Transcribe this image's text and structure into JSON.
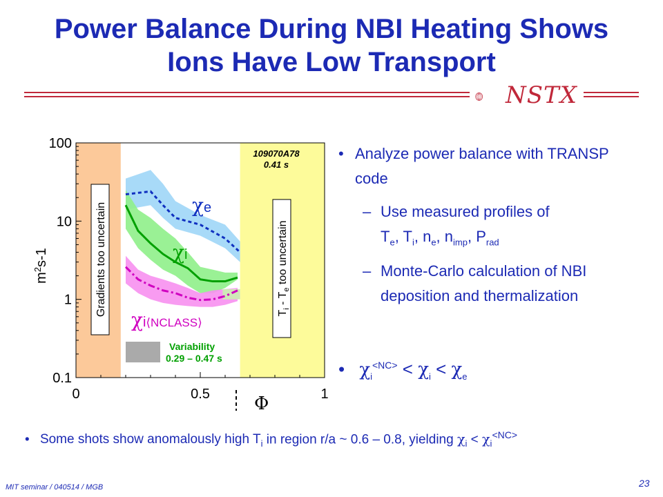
{
  "title_line1": "Power Balance During NBI Heating Shows",
  "title_line2": "Ions Have Low Transport",
  "logo_text": "NSTX",
  "colors": {
    "title": "#1c2ab4",
    "rule": "#c0283a",
    "chi_e": "#1030c0",
    "chi_i": "#00a000",
    "chi_nc": "#d000c0",
    "left_band": "#fcc99a",
    "right_band": "#fdfb9a"
  },
  "bullets": {
    "b1_marker": "•",
    "b1_text": "Analyze power balance with TRANSP code",
    "s1_marker": "–",
    "s1_line1": "Use measured profiles of",
    "s1_T": "T",
    "s1_e": "e",
    "s1_c1": ", T",
    "s1_i": "i",
    "s1_c2": ", n",
    "s1_e2": "e",
    "s1_c3": ", n",
    "s1_imp": "imp",
    "s1_c4": ", P",
    "s1_rad": "rad",
    "s2_marker": "–",
    "s2_text": "Monte-Carlo calculation of NBI deposition and thermalization",
    "b2_marker": "•",
    "b2_chi": "χ",
    "b2_i": "i",
    "b2_nc": "<NC>",
    "b2_lt1": " < ",
    "b2_chi2": "χ",
    "b2_i2": "i",
    "b2_lt2": " < ",
    "b2_chi3": "χ",
    "b2_e": "e"
  },
  "bottom": {
    "marker": "•",
    "part1": "Some shots show anomalously high T",
    "i1": "i",
    "part2": " in region r/a ~ 0.6 – 0.8, yielding ",
    "chi1": "χ",
    "i2": "i",
    "lt": " < ",
    "chi2": "χ",
    "i3": "i",
    "nc": "<NC>"
  },
  "footer": "MIT seminar / 040514 / MGB",
  "page_number": "23",
  "chart_data": {
    "type": "line",
    "title": "",
    "xlabel": "Φ",
    "ylabel": "m2s-1",
    "ylabel_parts": {
      "m": "m",
      "two": "2",
      "s": "s",
      "minus1": "-1"
    },
    "xlim": [
      0,
      1
    ],
    "ylim": [
      0.1,
      100
    ],
    "yscale": "log",
    "x_ticks": [
      "0",
      "0.5",
      "1"
    ],
    "y_ticks": [
      "100",
      "10",
      "1",
      "0.1"
    ],
    "shot_label": "109070A78",
    "time_label": "0.41 s",
    "left_region_label": "Gradients too uncertain",
    "right_region_label": {
      "T": "T",
      "i": "i",
      "minus": " - T",
      "e": "e",
      "rest": " too uncertain"
    },
    "variability_label_1": "Variability",
    "variability_label_2": "0.29 – 0.47 s",
    "regions": {
      "left": [
        0,
        0.18
      ],
      "right": [
        0.66,
        1.0
      ]
    },
    "series": [
      {
        "name": "χe",
        "label_chi": "χ",
        "label_sub": "e",
        "x": [
          0.2,
          0.3,
          0.35,
          0.4,
          0.5,
          0.6,
          0.66
        ],
        "y": [
          22,
          24,
          16,
          11,
          9,
          6,
          4
        ],
        "band_low": [
          14,
          16,
          11,
          8,
          6.5,
          4.5,
          3.0
        ],
        "band_high": [
          35,
          45,
          30,
          18,
          12,
          9,
          5.5
        ]
      },
      {
        "name": "χi",
        "label_chi": "χ",
        "label_sub": "i",
        "x": [
          0.2,
          0.25,
          0.3,
          0.35,
          0.4,
          0.45,
          0.5,
          0.55,
          0.6,
          0.65
        ],
        "y": [
          16,
          7.5,
          5.2,
          3.8,
          3.0,
          2.5,
          1.8,
          1.7,
          1.7,
          1.9
        ],
        "band_low": [
          8,
          4.5,
          3.2,
          2.4,
          2.0,
          1.5,
          1.2,
          1.2,
          1.4,
          1.8
        ],
        "band_high": [
          25,
          14,
          11,
          8,
          6,
          4,
          2.6,
          2.4,
          2.2,
          2.2
        ]
      },
      {
        "name": "χi NCLASS",
        "label_chi": "χ",
        "label_sub": "i",
        "label_rest": "⟨NCLASS⟩",
        "x": [
          0.2,
          0.25,
          0.3,
          0.35,
          0.4,
          0.45,
          0.5,
          0.55,
          0.6,
          0.65
        ],
        "y": [
          2.6,
          1.8,
          1.5,
          1.3,
          1.2,
          1.05,
          0.98,
          1.0,
          1.1,
          1.3
        ],
        "band_low": [
          1.6,
          1.2,
          1.0,
          0.9,
          0.85,
          0.82,
          0.8,
          0.8,
          0.85,
          0.95
        ],
        "band_high": [
          3.6,
          2.4,
          2.0,
          1.8,
          1.6,
          1.4,
          1.2,
          1.3,
          1.35,
          1.4
        ]
      }
    ]
  }
}
